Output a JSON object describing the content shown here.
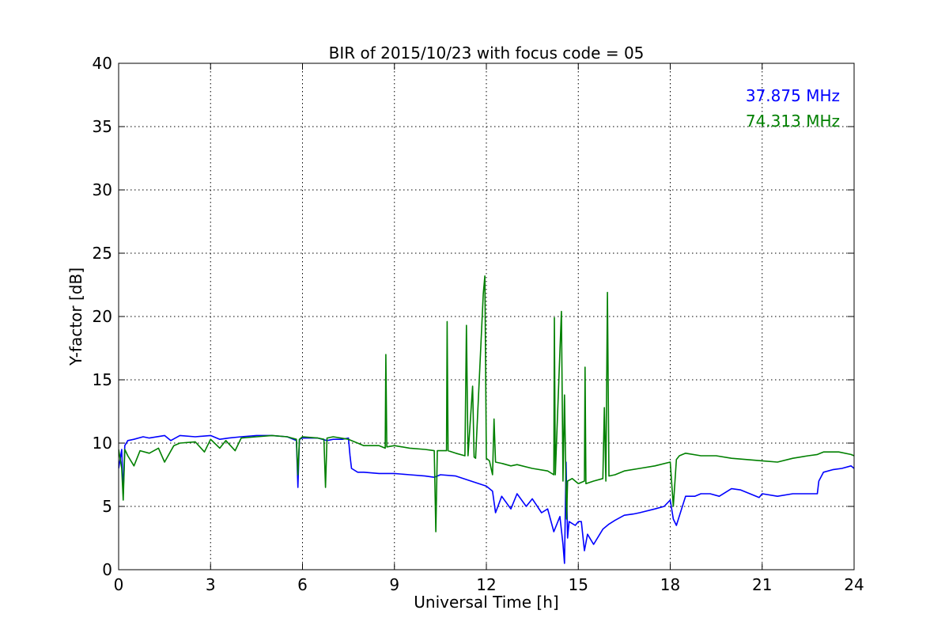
{
  "chart_data": {
    "type": "line",
    "title": "BIR of 2015/10/23 with focus code = 05",
    "xlabel": "Universal Time [h]",
    "ylabel": "Y-factor [dB]",
    "xlim": [
      0,
      24
    ],
    "ylim": [
      0,
      40
    ],
    "xticks": [
      0,
      3,
      6,
      9,
      12,
      15,
      18,
      21,
      24
    ],
    "yticks": [
      0,
      5,
      10,
      15,
      20,
      25,
      30,
      35,
      40
    ],
    "grid": true,
    "legend_placement": "top-right",
    "series": [
      {
        "name": "37.875 MHz",
        "color": "#0000ff",
        "x": [
          0.0,
          0.1,
          0.15,
          0.2,
          0.3,
          0.5,
          0.8,
          1.0,
          1.5,
          1.7,
          2.0,
          2.5,
          3.0,
          3.3,
          3.6,
          4.0,
          4.5,
          5.0,
          5.5,
          5.8,
          5.85,
          5.9,
          6.0,
          6.5,
          6.8,
          7.0,
          7.3,
          7.5,
          7.55,
          7.6,
          7.8,
          8.0,
          8.5,
          9.0,
          9.5,
          10.0,
          10.3,
          10.5,
          11.0,
          11.5,
          12.0,
          12.2,
          12.3,
          12.5,
          12.8,
          13.0,
          13.3,
          13.5,
          13.8,
          14.0,
          14.2,
          14.4,
          14.5,
          14.55,
          14.6,
          14.65,
          14.7,
          14.9,
          15.0,
          15.1,
          15.2,
          15.3,
          15.5,
          15.8,
          16.0,
          16.2,
          16.5,
          16.8,
          17.0,
          17.5,
          17.8,
          18.0,
          18.1,
          18.2,
          18.5,
          18.8,
          19.0,
          19.3,
          19.6,
          20.0,
          20.3,
          20.6,
          20.9,
          21.0,
          21.5,
          22.0,
          22.5,
          22.8,
          22.85,
          23.0,
          23.3,
          23.6,
          23.9,
          24.0
        ],
        "y": [
          8.0,
          9.5,
          6.0,
          9.8,
          10.2,
          10.3,
          10.5,
          10.4,
          10.6,
          10.2,
          10.6,
          10.5,
          10.6,
          10.3,
          10.4,
          10.5,
          10.6,
          10.6,
          10.5,
          10.2,
          6.5,
          10.3,
          10.4,
          10.4,
          10.2,
          10.3,
          10.3,
          10.4,
          9.0,
          8.0,
          7.7,
          7.7,
          7.6,
          7.6,
          7.5,
          7.4,
          7.3,
          7.5,
          7.4,
          7.0,
          6.6,
          6.2,
          4.5,
          5.8,
          4.8,
          6.0,
          5.0,
          5.6,
          4.5,
          4.8,
          3.0,
          4.2,
          2.0,
          0.5,
          8.5,
          2.5,
          3.8,
          3.5,
          3.8,
          3.8,
          1.5,
          2.8,
          2.0,
          3.2,
          3.6,
          3.9,
          4.3,
          4.4,
          4.5,
          4.8,
          5.0,
          5.5,
          4.0,
          3.5,
          5.8,
          5.8,
          6.0,
          6.0,
          5.8,
          6.4,
          6.3,
          6.0,
          5.7,
          6.0,
          5.8,
          6.0,
          6.0,
          6.0,
          7.0,
          7.7,
          7.9,
          8.0,
          8.2,
          8.0
        ]
      },
      {
        "name": "74.313 MHz",
        "color": "#008000",
        "x": [
          0.0,
          0.1,
          0.15,
          0.2,
          0.3,
          0.5,
          0.7,
          1.0,
          1.3,
          1.5,
          1.8,
          2.0,
          2.5,
          2.8,
          3.0,
          3.3,
          3.5,
          3.8,
          4.0,
          4.5,
          5.0,
          5.5,
          5.8,
          5.85,
          5.9,
          6.0,
          6.5,
          6.7,
          6.75,
          6.8,
          7.0,
          7.5,
          7.8,
          8.0,
          8.5,
          8.7,
          8.72,
          8.75,
          9.0,
          9.5,
          10.0,
          10.3,
          10.35,
          10.4,
          10.7,
          10.72,
          10.75,
          11.0,
          11.3,
          11.35,
          11.4,
          11.55,
          11.6,
          11.65,
          11.9,
          11.95,
          12.0,
          12.1,
          12.2,
          12.25,
          12.3,
          12.5,
          12.8,
          13.0,
          13.5,
          14.0,
          14.2,
          14.22,
          14.25,
          14.45,
          14.5,
          14.55,
          14.6,
          14.62,
          14.65,
          14.8,
          15.0,
          15.2,
          15.22,
          15.25,
          15.5,
          15.8,
          15.85,
          15.9,
          15.95,
          16.0,
          16.2,
          16.5,
          17.0,
          17.5,
          18.0,
          18.1,
          18.2,
          18.3,
          18.5,
          19.0,
          19.5,
          20.0,
          20.5,
          21.0,
          21.5,
          22.0,
          22.5,
          22.8,
          23.0,
          23.5,
          23.9,
          24.0
        ],
        "y": [
          9.5,
          8.0,
          5.5,
          9.5,
          9.0,
          8.2,
          9.4,
          9.2,
          9.6,
          8.5,
          9.8,
          10.0,
          10.1,
          9.3,
          10.3,
          9.6,
          10.2,
          9.4,
          10.4,
          10.5,
          10.6,
          10.5,
          10.3,
          7.5,
          10.3,
          10.5,
          10.4,
          10.3,
          6.5,
          10.4,
          10.5,
          10.3,
          10.0,
          9.8,
          9.8,
          9.6,
          17.0,
          9.7,
          9.8,
          9.6,
          9.5,
          9.4,
          3.0,
          9.4,
          9.4,
          19.6,
          9.4,
          9.2,
          9.0,
          19.3,
          9.0,
          14.5,
          8.9,
          8.8,
          21.8,
          23.2,
          8.8,
          8.6,
          7.5,
          11.9,
          8.5,
          8.4,
          8.2,
          8.3,
          8.0,
          7.8,
          7.5,
          19.9,
          7.5,
          20.4,
          7.0,
          13.8,
          6.0,
          4.0,
          7.0,
          7.2,
          6.8,
          7.0,
          16.0,
          6.8,
          7.0,
          7.2,
          12.8,
          7.0,
          21.9,
          7.4,
          7.5,
          7.8,
          8.0,
          8.2,
          8.5,
          5.0,
          8.7,
          9.0,
          9.2,
          9.0,
          9.0,
          8.8,
          8.7,
          8.6,
          8.5,
          8.8,
          9.0,
          9.1,
          9.3,
          9.3,
          9.1,
          9.0
        ]
      }
    ]
  }
}
